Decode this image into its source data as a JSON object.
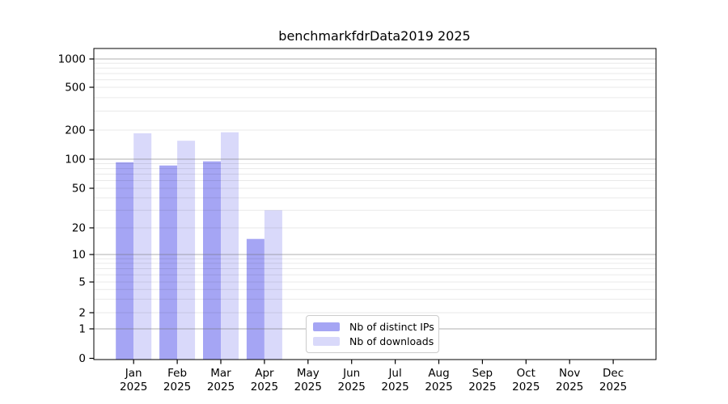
{
  "title": "benchmarkfdrData2019 2025",
  "chart_data": {
    "type": "bar",
    "title": "benchmarkfdrData2019 2025",
    "x_categories": [
      {
        "month": "Jan",
        "year": "2025"
      },
      {
        "month": "Feb",
        "year": "2025"
      },
      {
        "month": "Mar",
        "year": "2025"
      },
      {
        "month": "Apr",
        "year": "2025"
      },
      {
        "month": "May",
        "year": "2025"
      },
      {
        "month": "Jun",
        "year": "2025"
      },
      {
        "month": "Jul",
        "year": "2025"
      },
      {
        "month": "Aug",
        "year": "2025"
      },
      {
        "month": "Sep",
        "year": "2025"
      },
      {
        "month": "Oct",
        "year": "2025"
      },
      {
        "month": "Nov",
        "year": "2025"
      },
      {
        "month": "Dec",
        "year": "2025"
      }
    ],
    "series": [
      {
        "name": "Nb of distinct IPs",
        "color": "#a5a5f4",
        "values": [
          93,
          86,
          95,
          15,
          null,
          null,
          null,
          null,
          null,
          null,
          null,
          null
        ]
      },
      {
        "name": "Nb of downloads",
        "color": "#d9d9fa",
        "values": [
          185,
          155,
          190,
          30,
          null,
          null,
          null,
          null,
          null,
          null,
          null,
          null
        ]
      }
    ],
    "y_ticks": [
      0,
      1,
      2,
      5,
      10,
      20,
      50,
      100,
      200,
      500,
      1000
    ],
    "y_scale": "log-like (symlog)",
    "ylim": [
      0,
      1400
    ],
    "grid": "horizontal, minor + major decade lines, drawn over bars",
    "legend_position": "inside lower-center"
  },
  "colors": {
    "background": "#ffffff",
    "axis": "#000000",
    "text": "#000000",
    "grid_major": "#b9b9b9",
    "grid_minor": "#e9e9e9",
    "legend_border": "#cccccc"
  }
}
